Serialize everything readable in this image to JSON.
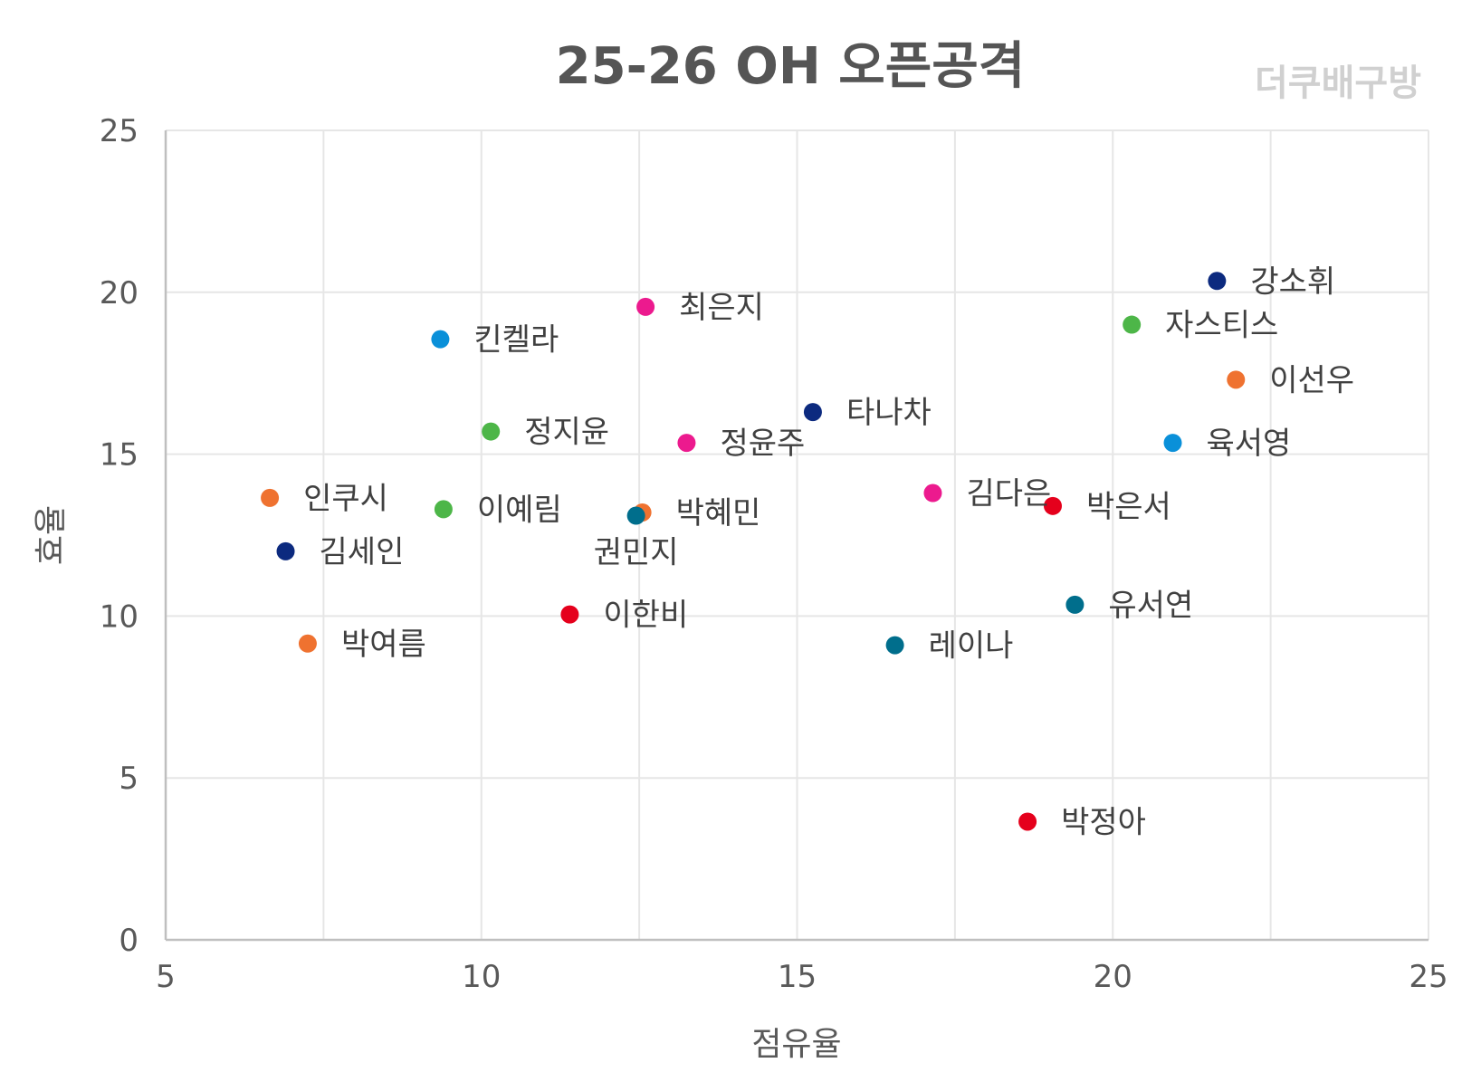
{
  "chart_data": {
    "type": "scatter",
    "title": "25-26 OH 오픈공격",
    "watermark": "더쿠배구방",
    "xlabel": "점유율",
    "ylabel": "효율",
    "xlim": [
      5,
      25
    ],
    "ylim": [
      0,
      25
    ],
    "x_ticks": [
      5,
      10,
      15,
      20,
      25
    ],
    "y_ticks": [
      0,
      5,
      10,
      15,
      20,
      25
    ],
    "grid": true,
    "legend": "none",
    "points": [
      {
        "label": "강소휘",
        "x": 21.65,
        "y": 20.35,
        "color": "#0c2a7f"
      },
      {
        "label": "자스티스",
        "x": 20.3,
        "y": 19.0,
        "color": "#4db648"
      },
      {
        "label": "이선우",
        "x": 21.95,
        "y": 17.3,
        "color": "#ef7230"
      },
      {
        "label": "육서영",
        "x": 20.95,
        "y": 15.35,
        "color": "#0a90d9"
      },
      {
        "label": "최은지",
        "x": 12.6,
        "y": 19.55,
        "color": "#ec1a8e"
      },
      {
        "label": "킨켈라",
        "x": 9.35,
        "y": 18.55,
        "color": "#0a90d9"
      },
      {
        "label": "정지윤",
        "x": 10.15,
        "y": 15.7,
        "color": "#4db648"
      },
      {
        "label": "정윤주",
        "x": 13.25,
        "y": 15.35,
        "color": "#ec1a8e"
      },
      {
        "label": "타나차",
        "x": 15.25,
        "y": 16.3,
        "color": "#0c2a7f"
      },
      {
        "label": "김다은",
        "x": 17.15,
        "y": 13.8,
        "color": "#ec1a8e"
      },
      {
        "label": "박은서",
        "x": 19.05,
        "y": 13.4,
        "color": "#e5001c"
      },
      {
        "label": "인쿠시",
        "x": 6.65,
        "y": 13.65,
        "color": "#ef7230"
      },
      {
        "label": "이예림",
        "x": 9.4,
        "y": 13.3,
        "color": "#4db648"
      },
      {
        "label": "박혜민",
        "x": 12.55,
        "y": 13.2,
        "color": "#ef7230"
      },
      {
        "label": "권민지",
        "x": 12.45,
        "y": 13.1,
        "color": "#006e8c"
      },
      {
        "label": "김세인",
        "x": 6.9,
        "y": 12.0,
        "color": "#0c2a7f"
      },
      {
        "label": "유서연",
        "x": 19.4,
        "y": 10.35,
        "color": "#006e8c"
      },
      {
        "label": "이한비",
        "x": 11.4,
        "y": 10.05,
        "color": "#e5001c"
      },
      {
        "label": "레이나",
        "x": 16.55,
        "y": 9.1,
        "color": "#006e8c"
      },
      {
        "label": "박여름",
        "x": 7.25,
        "y": 9.15,
        "color": "#ef7230"
      },
      {
        "label": "박정아",
        "x": 18.65,
        "y": 3.65,
        "color": "#e5001c"
      }
    ]
  }
}
